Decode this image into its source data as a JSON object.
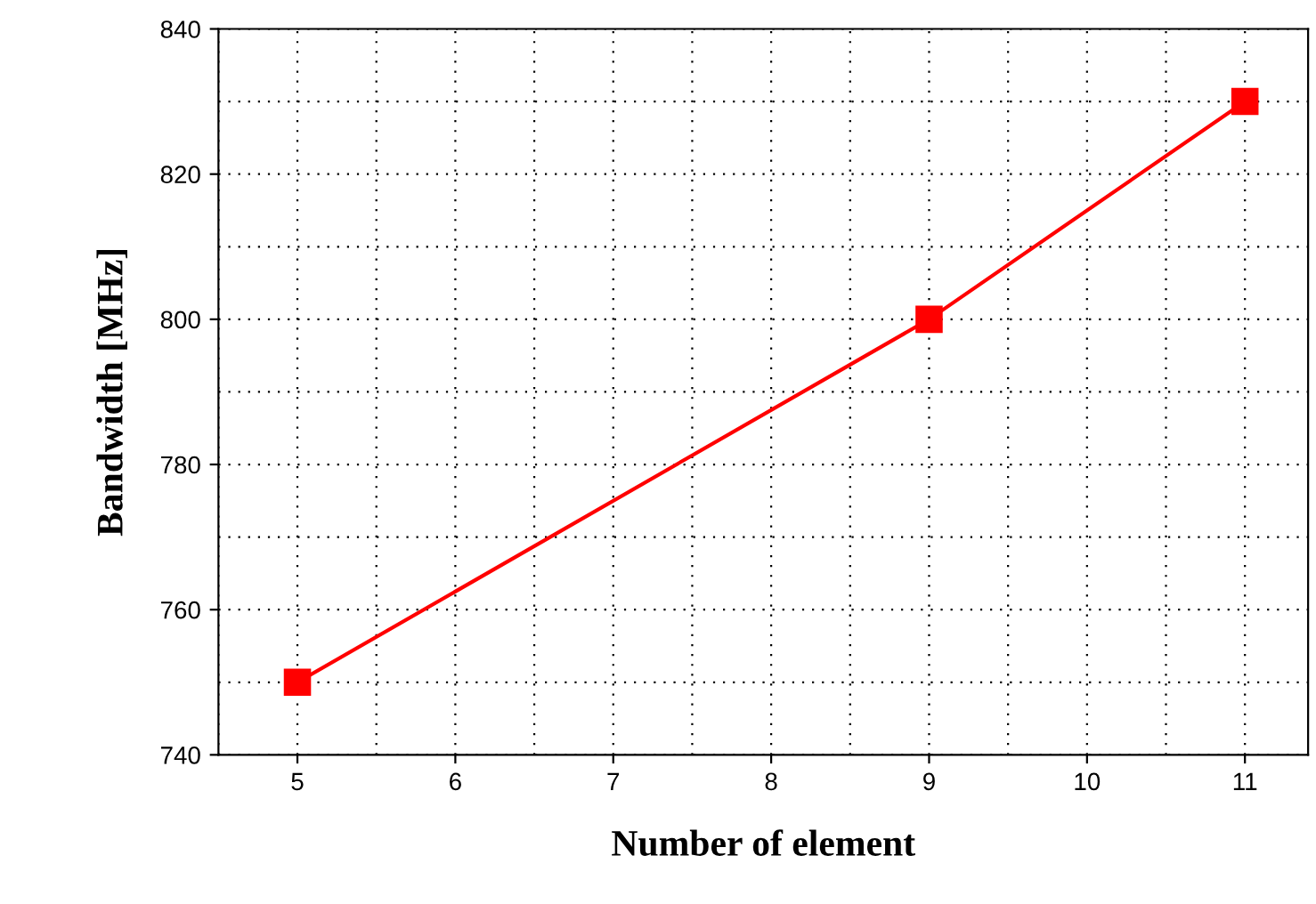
{
  "chart_data": {
    "type": "line",
    "xlabel": "Number of element",
    "ylabel": "Bandwidth [MHz]",
    "x": [
      5,
      9,
      11
    ],
    "series": [
      {
        "color": "#ff0000",
        "values": [
          750,
          800,
          830
        ]
      }
    ],
    "xlim": [
      4.5,
      11.4
    ],
    "xticks": [
      5,
      6,
      7,
      8,
      9,
      10,
      11
    ],
    "ylim": [
      740,
      840
    ],
    "yticks": [
      740,
      760,
      780,
      800,
      820,
      840
    ],
    "grid": true,
    "marker": "square",
    "line_style": "solid"
  }
}
